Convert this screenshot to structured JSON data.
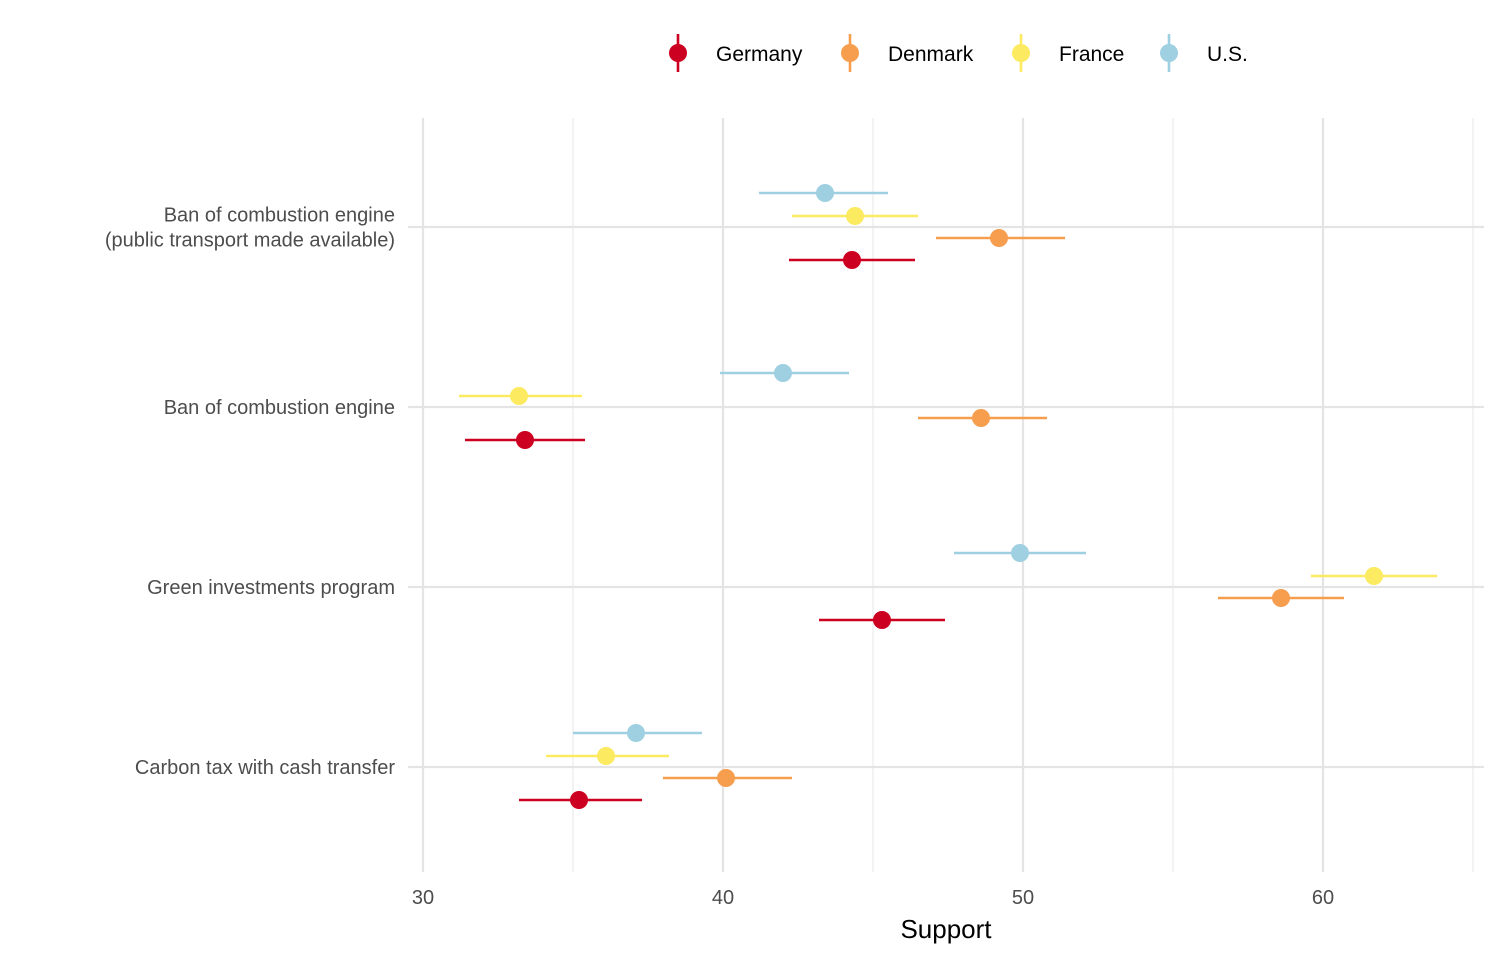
{
  "chart_data": {
    "type": "scatter",
    "subtype": "dot-and-whisker",
    "orientation": "horizontal",
    "xlabel": "Support",
    "ylabel": "",
    "xlim": [
      30,
      65
    ],
    "x_ticks": [
      30,
      40,
      50,
      60
    ],
    "grid": true,
    "legend_position": "top",
    "categories": [
      [
        "Ban of combustion engine",
        "(public transport made available)"
      ],
      [
        "Ban of combustion engine"
      ],
      [
        "Green investments program"
      ],
      [
        "Carbon tax with cash transfer"
      ]
    ],
    "series": [
      {
        "name": "Germany",
        "color": "#CC0020",
        "values": [
          44.3,
          33.4,
          45.3,
          35.2
        ],
        "ci_low": [
          42.2,
          31.4,
          43.2,
          33.2
        ],
        "ci_high": [
          46.4,
          35.4,
          47.4,
          37.3
        ]
      },
      {
        "name": "Denmark",
        "color": "#F79E4E",
        "values": [
          49.2,
          48.6,
          58.6,
          40.1
        ],
        "ci_low": [
          47.1,
          46.5,
          56.5,
          38.0
        ],
        "ci_high": [
          51.4,
          50.8,
          60.7,
          42.3
        ]
      },
      {
        "name": "France",
        "color": "#FCEB60",
        "values": [
          44.4,
          33.2,
          61.7,
          36.1
        ],
        "ci_low": [
          42.3,
          31.2,
          59.6,
          34.1
        ],
        "ci_high": [
          46.5,
          35.3,
          63.8,
          38.2
        ]
      },
      {
        "name": "U.S.",
        "color": "#9FD0E2",
        "values": [
          43.4,
          42.0,
          49.9,
          37.1
        ],
        "ci_low": [
          41.2,
          39.9,
          47.7,
          35.0
        ],
        "ci_high": [
          45.5,
          44.2,
          52.1,
          39.3
        ]
      }
    ]
  }
}
